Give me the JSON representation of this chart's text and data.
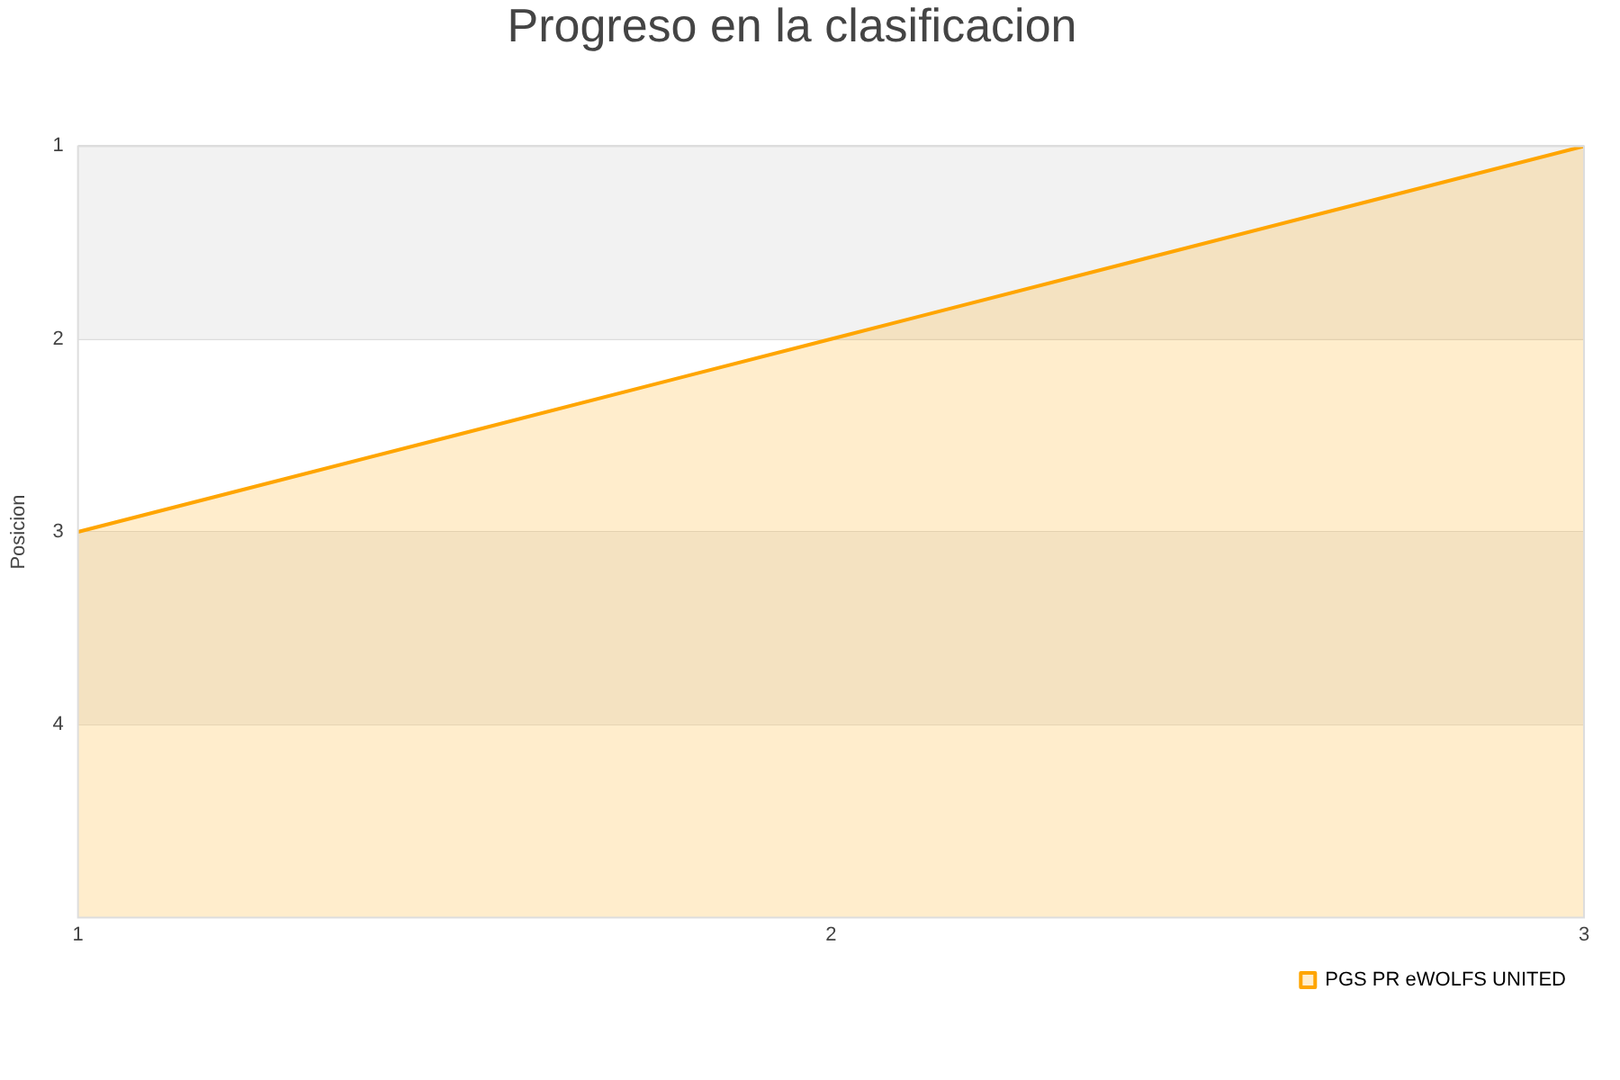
{
  "chart_data": {
    "type": "line",
    "title": "Progreso en la clasificacion",
    "ylabel": "Posicion",
    "x": [
      1,
      2,
      3
    ],
    "series": [
      {
        "name": "PGS PR eWOLFS UNITED",
        "color": "#ffa500",
        "values": [
          3,
          2,
          1
        ],
        "lower": [
          5,
          5,
          5
        ],
        "upper": [
          3,
          2,
          1
        ]
      }
    ],
    "xlim": [
      1,
      3
    ],
    "xticks": [
      1,
      2,
      3
    ],
    "ylim": [
      5,
      1
    ],
    "yticks": [
      1,
      2,
      3,
      4
    ],
    "bands": [
      {
        "axis": "y",
        "from": 1,
        "to": 2,
        "color": "#f2f2f2"
      },
      {
        "axis": "y",
        "from": 3,
        "to": 4,
        "color": "#f2f2f2"
      }
    ],
    "grid": "y",
    "legend": "bottom right"
  }
}
